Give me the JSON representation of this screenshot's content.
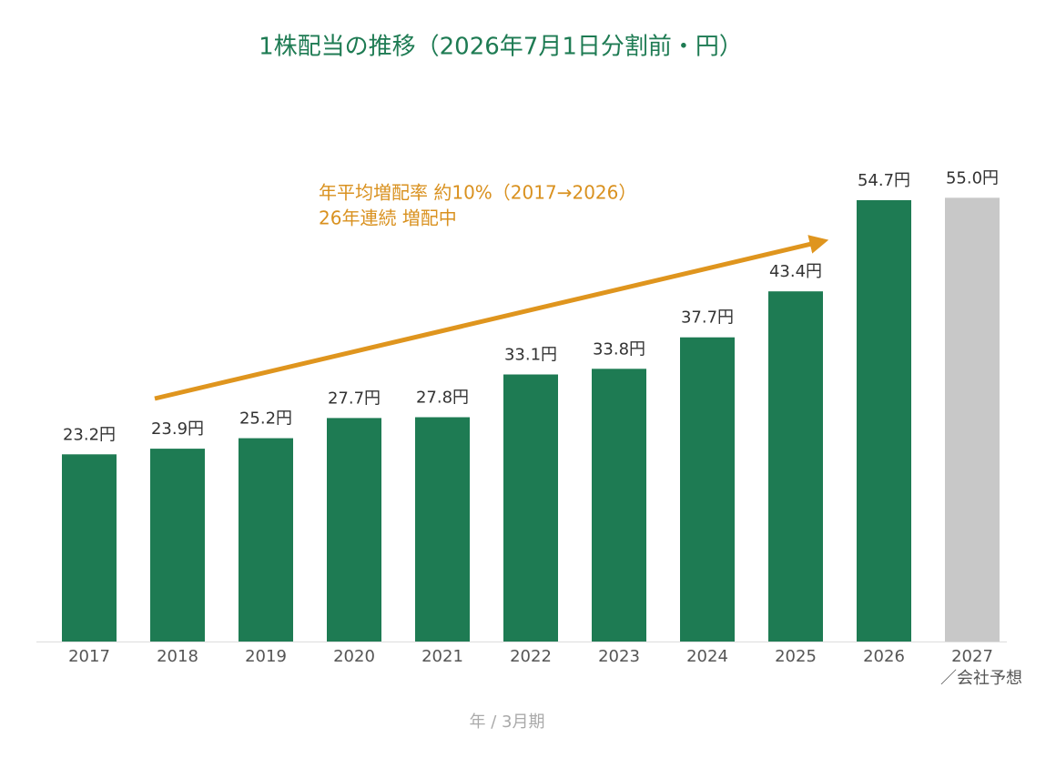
{
  "chart_data": {
    "type": "bar",
    "title": "1株配当の推移（2026年7月1日分割前・円）",
    "annotation": [
      "年平均増配率 約10%（2017→2026）",
      "26年連続 増配中"
    ],
    "x_label": "年 / 3月期",
    "categories": [
      "2017",
      "2018",
      "2019",
      "2020",
      "2021",
      "2022",
      "2023",
      "2024",
      "2025",
      "2026",
      "2027"
    ],
    "category_notes": [
      null,
      null,
      null,
      null,
      null,
      null,
      null,
      null,
      null,
      null,
      "／会社予想"
    ],
    "values": [
      23.2,
      23.9,
      25.2,
      27.7,
      27.8,
      33.1,
      33.8,
      37.7,
      43.4,
      54.7,
      55.0
    ],
    "value_labels": [
      "23.2円",
      "23.9円",
      "25.2円",
      "27.7円",
      "27.8円",
      "33.1円",
      "33.8円",
      "37.7円",
      "43.4円",
      "54.7円",
      "55.0円"
    ],
    "colors": [
      "#1e7b53",
      "#1e7b53",
      "#1e7b53",
      "#1e7b53",
      "#1e7b53",
      "#1e7b53",
      "#1e7b53",
      "#1e7b53",
      "#1e7b53",
      "#1e7b53",
      "#c8c8c8"
    ],
    "ylim": [
      0,
      60
    ]
  }
}
